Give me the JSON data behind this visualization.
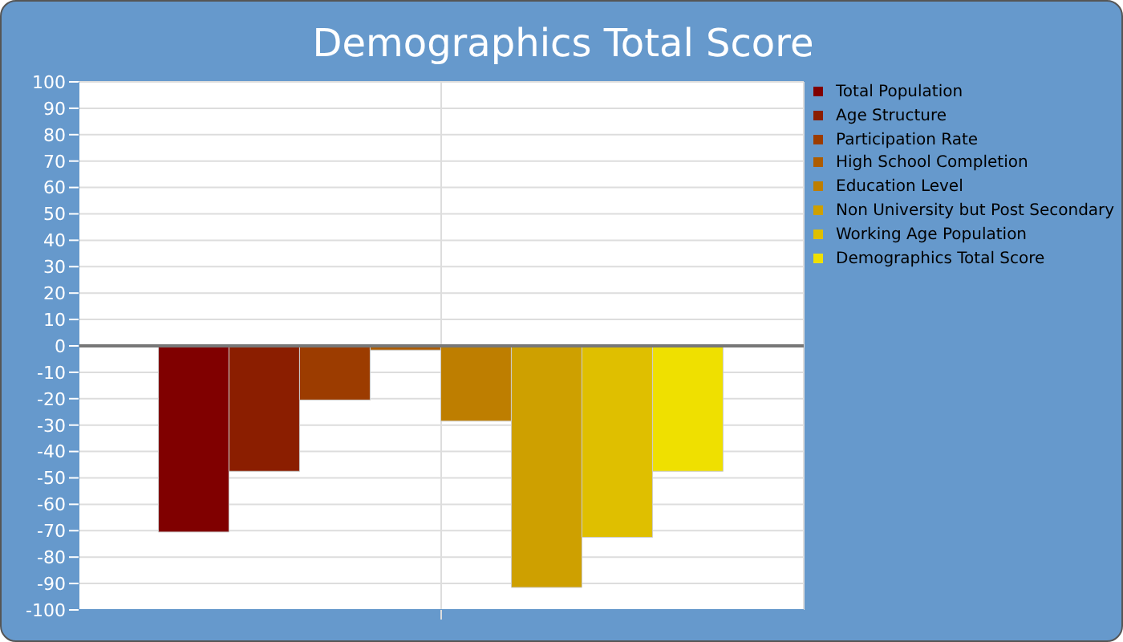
{
  "chart_data": {
    "type": "bar",
    "title": "Demographics Total Score",
    "categories": [
      null
    ],
    "series": [
      {
        "name": "Total Population",
        "color": "#800000",
        "values": [
          -70.5
        ]
      },
      {
        "name": "Age Structure",
        "color": "#8b1e00",
        "values": [
          -47.5
        ]
      },
      {
        "name": "Participation Rate",
        "color": "#9c3c00",
        "values": [
          -20.5
        ]
      },
      {
        "name": "High School Completion",
        "color": "#ad5c00",
        "values": [
          -1.6
        ]
      },
      {
        "name": "Education Level",
        "color": "#be7e00",
        "values": [
          -28.5
        ]
      },
      {
        "name": "Non University but Post Secondary",
        "color": "#cea000",
        "values": [
          -91.5
        ]
      },
      {
        "name": "Working Age Population",
        "color": "#dfbf00",
        "values": [
          -72.5
        ]
      },
      {
        "name": "Demographics Total Score",
        "color": "#efe000",
        "values": [
          -47.5
        ]
      }
    ],
    "ylim": [
      -100,
      100
    ],
    "yticks": [
      -100,
      -90,
      -80,
      -70,
      -60,
      -50,
      -40,
      -30,
      -20,
      -10,
      0,
      10,
      20,
      30,
      40,
      50,
      60,
      70,
      80,
      90,
      100
    ],
    "ref_lines": [
      {
        "axis": "y",
        "value": 0,
        "color": "#777777"
      }
    ],
    "grid": true,
    "legend": "top right"
  }
}
